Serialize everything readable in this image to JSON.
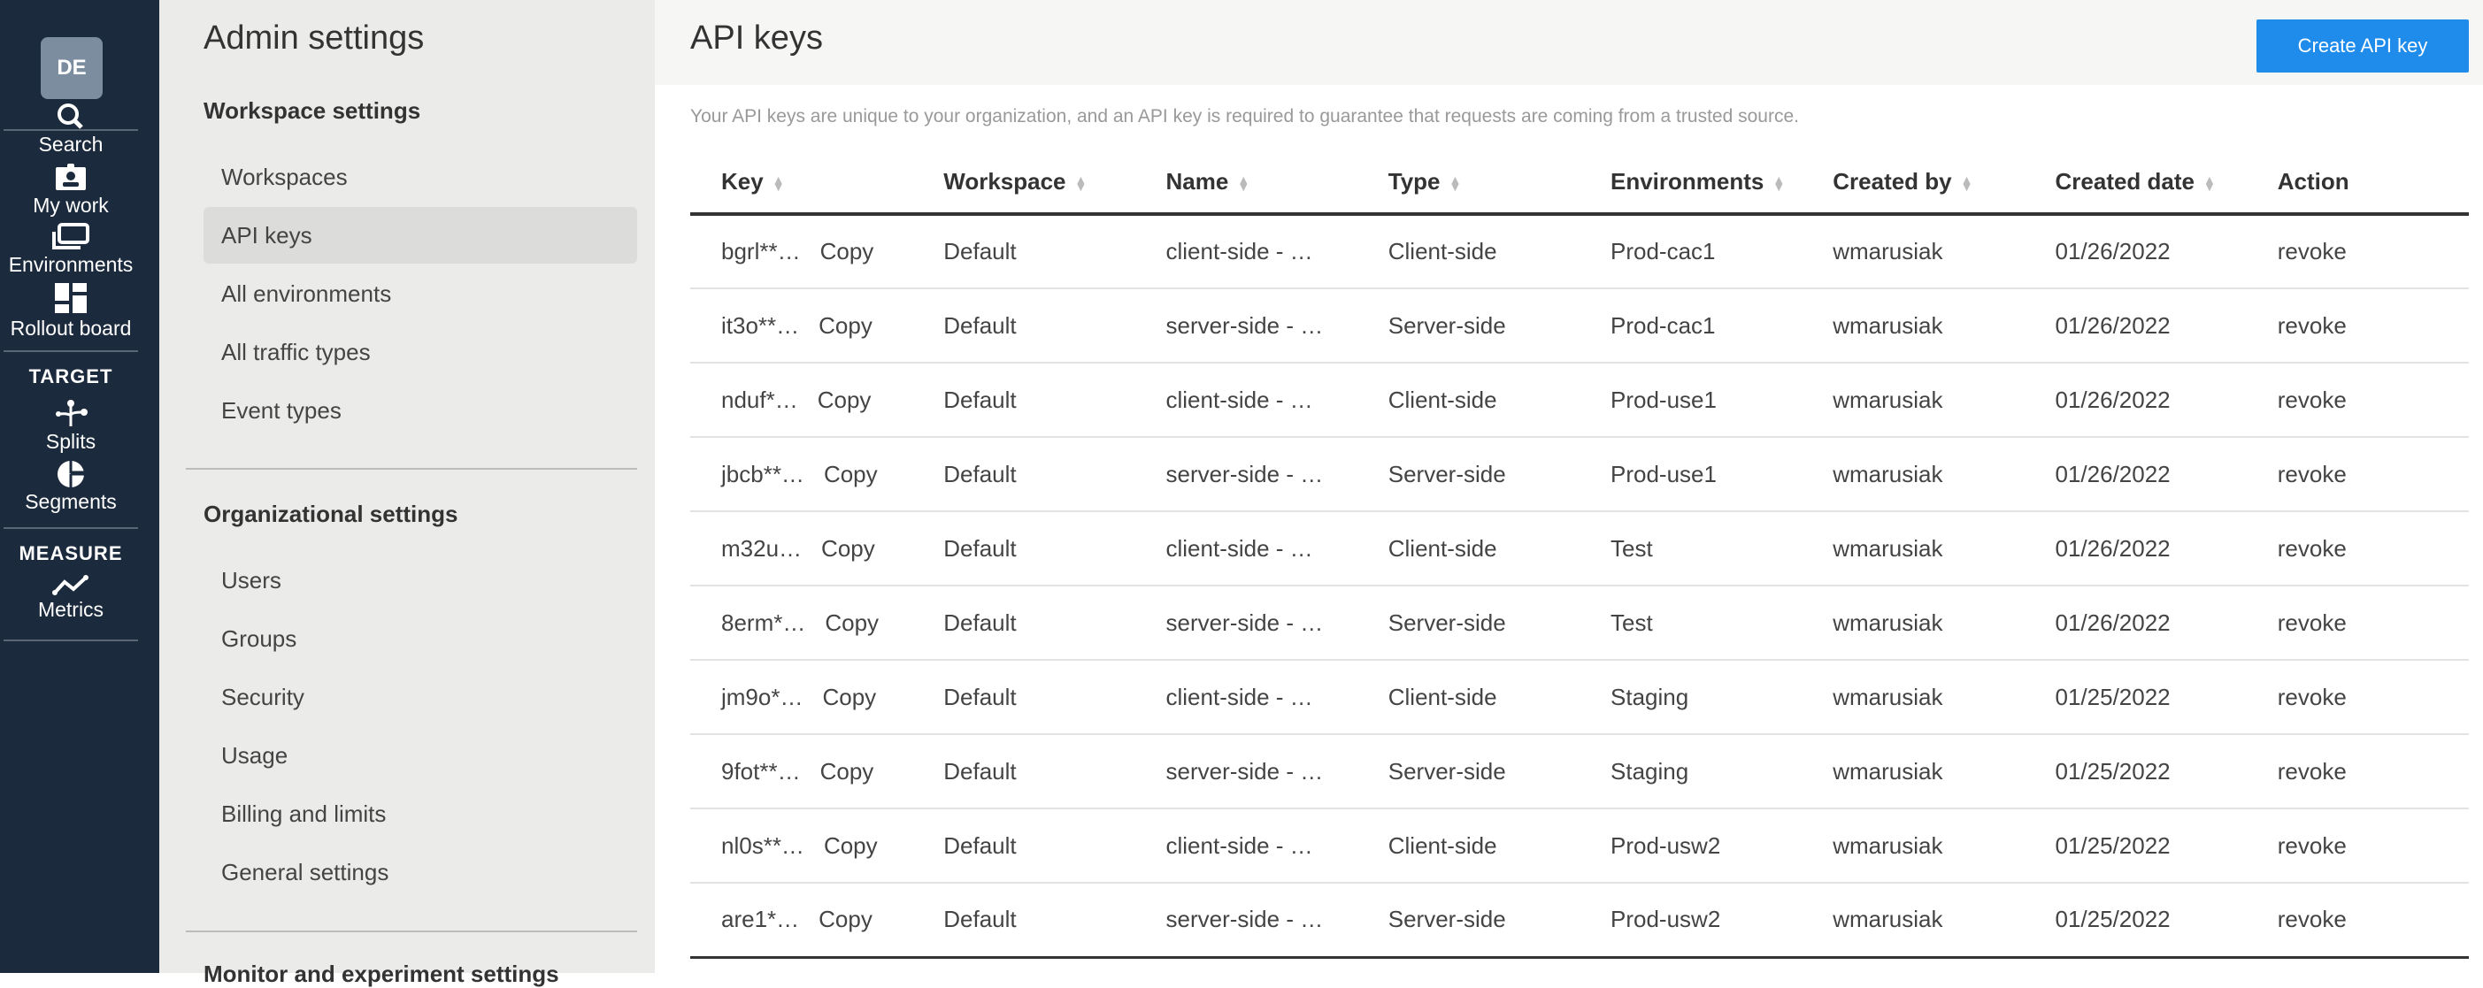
{
  "rail": {
    "avatar": "DE",
    "items": [
      {
        "label": "Search",
        "icon": "search-icon"
      },
      {
        "label": "My work",
        "icon": "badge-icon"
      },
      {
        "label": "Environments",
        "icon": "environments-icon"
      },
      {
        "label": "Rollout board",
        "icon": "dashboard-icon"
      },
      {
        "label": "Splits",
        "icon": "splits-icon"
      },
      {
        "label": "Segments",
        "icon": "segments-icon"
      },
      {
        "label": "Metrics",
        "icon": "metrics-icon"
      }
    ],
    "sections": {
      "target": "TARGET",
      "measure": "MEASURE"
    }
  },
  "panel": {
    "title": "Admin settings",
    "workspace_heading": "Workspace settings",
    "workspace_items": [
      "Workspaces",
      "API keys",
      "All environments",
      "All traffic types",
      "Event types"
    ],
    "org_heading": "Organizational settings",
    "org_items": [
      "Users",
      "Groups",
      "Security",
      "Usage",
      "Billing and limits",
      "General settings"
    ],
    "next_heading": "Monitor and experiment settings",
    "active": "API keys"
  },
  "main": {
    "title": "API keys",
    "create_button": "Create API key",
    "description": "Your API keys are unique to your organization, and an API key is required to guarantee that requests are coming from a trusted source.",
    "columns": [
      "Key",
      "Workspace",
      "Name",
      "Type",
      "Environments",
      "Created by",
      "Created date",
      "Action"
    ],
    "copy_label": "Copy",
    "rows": [
      {
        "key": "bgrl**…",
        "workspace": "Default",
        "name": "client-side - …",
        "type": "Client-side",
        "env": "Prod-cac1",
        "by": "wmarusiak",
        "date": "01/26/2022",
        "action": "revoke"
      },
      {
        "key": "it3o**…",
        "workspace": "Default",
        "name": "server-side - …",
        "type": "Server-side",
        "env": "Prod-cac1",
        "by": "wmarusiak",
        "date": "01/26/2022",
        "action": "revoke"
      },
      {
        "key": "nduf*…",
        "workspace": "Default",
        "name": "client-side - …",
        "type": "Client-side",
        "env": "Prod-use1",
        "by": "wmarusiak",
        "date": "01/26/2022",
        "action": "revoke"
      },
      {
        "key": "jbcb**…",
        "workspace": "Default",
        "name": "server-side - …",
        "type": "Server-side",
        "env": "Prod-use1",
        "by": "wmarusiak",
        "date": "01/26/2022",
        "action": "revoke"
      },
      {
        "key": "m32u…",
        "workspace": "Default",
        "name": "client-side - …",
        "type": "Client-side",
        "env": "Test",
        "by": "wmarusiak",
        "date": "01/26/2022",
        "action": "revoke"
      },
      {
        "key": "8erm*…",
        "workspace": "Default",
        "name": "server-side - …",
        "type": "Server-side",
        "env": "Test",
        "by": "wmarusiak",
        "date": "01/26/2022",
        "action": "revoke"
      },
      {
        "key": "jm9o*…",
        "workspace": "Default",
        "name": "client-side - …",
        "type": "Client-side",
        "env": "Staging",
        "by": "wmarusiak",
        "date": "01/25/2022",
        "action": "revoke"
      },
      {
        "key": "9fot**…",
        "workspace": "Default",
        "name": "server-side - …",
        "type": "Server-side",
        "env": "Staging",
        "by": "wmarusiak",
        "date": "01/25/2022",
        "action": "revoke"
      },
      {
        "key": "nl0s**…",
        "workspace": "Default",
        "name": "client-side - …",
        "type": "Client-side",
        "env": "Prod-usw2",
        "by": "wmarusiak",
        "date": "01/25/2022",
        "action": "revoke"
      },
      {
        "key": "are1*…",
        "workspace": "Default",
        "name": "server-side - …",
        "type": "Server-side",
        "env": "Prod-usw2",
        "by": "wmarusiak",
        "date": "01/25/2022",
        "action": "revoke"
      }
    ]
  },
  "colors": {
    "rail": "#1b2a3c",
    "accent": "#1f8ceb",
    "panel": "#ebebea"
  }
}
